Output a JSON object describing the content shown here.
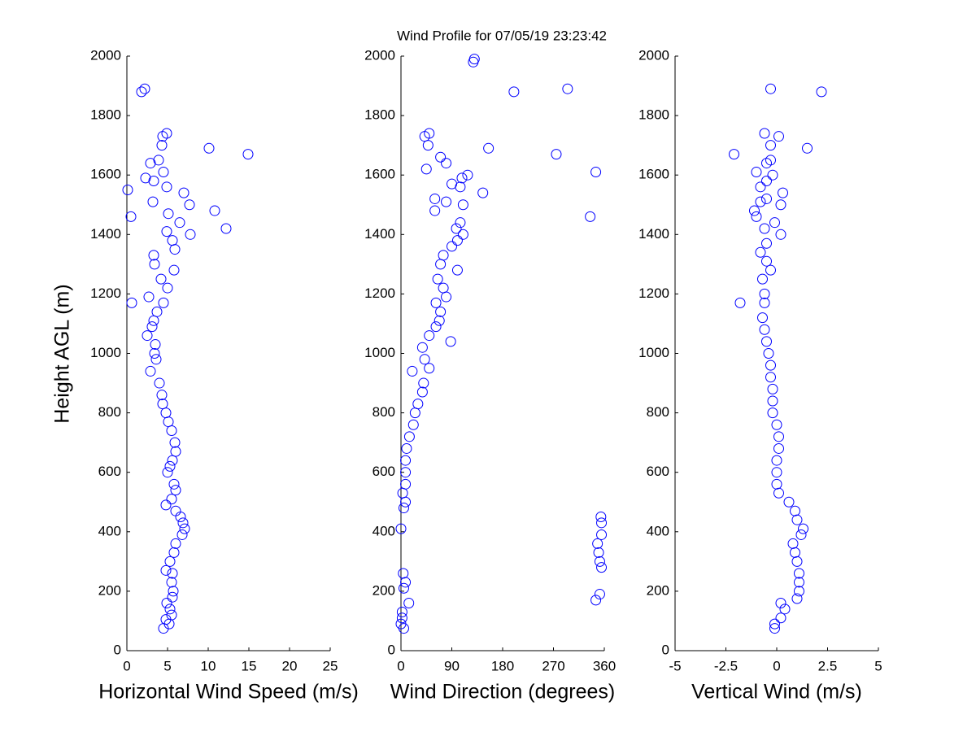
{
  "title": "Wind Profile for  07/05/19 23:23:42",
  "chart_data": [
    {
      "type": "scatter",
      "xlabel": "Horizontal Wind Speed (m/s)",
      "ylabel": "Height AGL (m)",
      "color": "#0000ff",
      "xlim": [
        0,
        25
      ],
      "xticks": [
        0,
        5,
        10,
        15,
        20,
        25
      ],
      "ylim": [
        0,
        2000
      ],
      "yticks": [
        0,
        200,
        400,
        600,
        800,
        1000,
        1200,
        1400,
        1600,
        1800,
        2000
      ],
      "x": [
        4.5,
        5.2,
        4.8,
        5.5,
        5.3,
        4.9,
        5.6,
        5.7,
        5.5,
        5.6,
        4.8,
        5.3,
        5.8,
        6.0,
        6.8,
        7.1,
        6.9,
        6.6,
        6.0,
        4.8,
        5.5,
        6.0,
        5.8,
        5.0,
        5.3,
        5.6,
        6.0,
        5.9,
        5.5,
        5.1,
        4.8,
        4.4,
        4.3,
        4.0,
        2.9,
        3.6,
        3.4,
        3.5,
        2.5,
        3.1,
        3.3,
        3.7,
        0.6,
        4.5,
        2.7,
        5.0,
        4.2,
        5.8,
        3.4,
        3.3,
        5.9,
        5.6,
        7.8,
        4.9,
        12.2,
        6.5,
        0.5,
        5.1,
        10.8,
        7.7,
        3.2,
        7.0,
        0.1,
        4.9,
        3.3,
        2.3,
        4.5,
        2.9,
        3.9,
        14.9,
        10.1,
        4.3,
        4.4,
        4.9,
        1.8,
        2.2
      ],
      "y": [
        75,
        90,
        105,
        120,
        140,
        160,
        180,
        200,
        230,
        260,
        270,
        300,
        330,
        360,
        390,
        410,
        430,
        450,
        470,
        490,
        510,
        540,
        560,
        600,
        620,
        640,
        670,
        700,
        740,
        770,
        800,
        830,
        860,
        900,
        940,
        980,
        1000,
        1030,
        1060,
        1090,
        1110,
        1140,
        1170,
        1170,
        1190,
        1220,
        1250,
        1280,
        1300,
        1330,
        1350,
        1380,
        1400,
        1410,
        1420,
        1440,
        1460,
        1470,
        1480,
        1500,
        1510,
        1540,
        1550,
        1560,
        1580,
        1590,
        1610,
        1640,
        1650,
        1670,
        1690,
        1700,
        1730,
        1740,
        1880,
        1890
      ]
    },
    {
      "type": "scatter",
      "xlabel": "Wind Direction (degrees)",
      "color": "#0000ff",
      "xlim": [
        0,
        360
      ],
      "xticks": [
        0,
        90,
        180,
        270,
        360
      ],
      "ylim": [
        0,
        2000
      ],
      "yticks": [
        0,
        200,
        400,
        600,
        800,
        1000,
        1200,
        1400,
        1600,
        1800,
        2000
      ],
      "x": [
        5,
        0,
        2,
        2,
        14,
        345,
        352,
        5,
        8,
        4,
        355,
        352,
        350,
        348,
        355,
        0,
        355,
        354,
        5,
        8,
        3,
        8,
        8,
        8,
        10,
        15,
        22,
        25,
        30,
        38,
        40,
        20,
        50,
        42,
        38,
        88,
        50,
        62,
        68,
        70,
        62,
        80,
        75,
        65,
        100,
        70,
        75,
        90,
        100,
        110,
        98,
        105,
        335,
        60,
        110,
        80,
        60,
        145,
        105,
        90,
        108,
        118,
        345,
        45,
        80,
        70,
        275,
        155,
        48,
        42,
        50,
        200,
        295,
        128,
        130
      ],
      "y": [
        75,
        90,
        110,
        130,
        160,
        170,
        190,
        210,
        230,
        260,
        280,
        300,
        330,
        360,
        390,
        410,
        430,
        450,
        480,
        500,
        530,
        560,
        600,
        640,
        680,
        720,
        760,
        800,
        830,
        870,
        900,
        940,
        950,
        980,
        1020,
        1040,
        1060,
        1090,
        1110,
        1140,
        1170,
        1190,
        1220,
        1250,
        1280,
        1300,
        1330,
        1360,
        1380,
        1400,
        1420,
        1440,
        1460,
        1480,
        1500,
        1510,
        1520,
        1540,
        1560,
        1570,
        1590,
        1600,
        1610,
        1620,
        1640,
        1660,
        1670,
        1690,
        1700,
        1730,
        1740,
        1880,
        1890,
        1980,
        1990
      ]
    },
    {
      "type": "scatter",
      "xlabel": "Vertical Wind (m/s)",
      "color": "#0000ff",
      "xlim": [
        -5,
        5
      ],
      "xticks": [
        -5,
        -2.5,
        0,
        2.5,
        5
      ],
      "ylim": [
        0,
        2000
      ],
      "yticks": [
        0,
        200,
        400,
        600,
        800,
        1000,
        1200,
        1400,
        1600,
        1800,
        2000
      ],
      "x": [
        -0.1,
        -0.1,
        0.2,
        0.4,
        0.2,
        1.0,
        1.1,
        1.1,
        1.1,
        1.0,
        0.9,
        0.8,
        1.2,
        1.3,
        1.0,
        0.9,
        0.6,
        0.1,
        0.0,
        0.0,
        0.0,
        0.1,
        0.1,
        0.0,
        -0.2,
        -0.2,
        -0.2,
        -0.3,
        -0.3,
        -0.4,
        -0.5,
        -0.6,
        -0.7,
        -1.8,
        -0.6,
        -0.6,
        -0.7,
        -0.3,
        -0.5,
        -0.8,
        -0.5,
        0.2,
        -0.6,
        -0.1,
        -1.0,
        -1.1,
        0.2,
        -0.8,
        -0.5,
        0.3,
        -0.8,
        -0.5,
        -0.2,
        -1.0,
        -0.5,
        -0.3,
        -2.1,
        1.5,
        -0.3,
        0.1,
        -0.6,
        2.2,
        -0.3
      ],
      "y": [
        75,
        90,
        110,
        140,
        160,
        175,
        200,
        230,
        260,
        300,
        330,
        360,
        390,
        410,
        440,
        470,
        500,
        530,
        560,
        600,
        640,
        680,
        720,
        760,
        800,
        840,
        880,
        920,
        960,
        1000,
        1040,
        1080,
        1120,
        1170,
        1170,
        1200,
        1250,
        1280,
        1310,
        1340,
        1370,
        1400,
        1420,
        1440,
        1460,
        1480,
        1500,
        1510,
        1520,
        1540,
        1560,
        1580,
        1600,
        1610,
        1640,
        1650,
        1670,
        1690,
        1700,
        1730,
        1740,
        1880,
        1890
      ]
    }
  ]
}
